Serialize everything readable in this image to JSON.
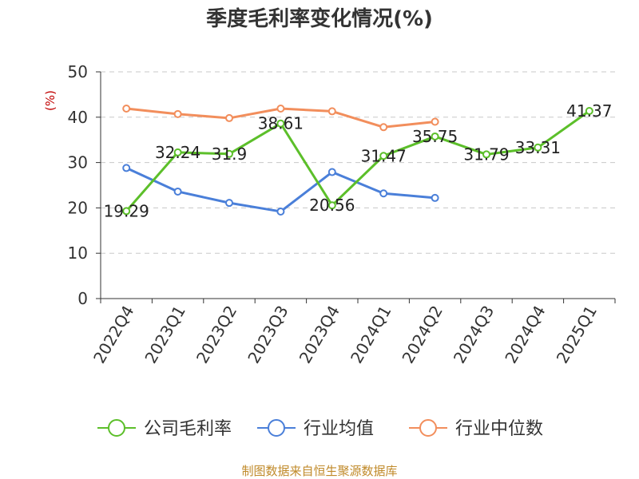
{
  "chart_data": {
    "type": "line",
    "title": "季度毛利率变化情况(%)",
    "unit_label": "(%)",
    "categories": [
      "2022Q4",
      "2023Q1",
      "2023Q2",
      "2023Q3",
      "2023Q4",
      "2024Q1",
      "2024Q2",
      "2024Q3",
      "2024Q4",
      "2025Q1"
    ],
    "ylim": [
      0,
      50
    ],
    "yticks": [
      0,
      10,
      20,
      30,
      40,
      50
    ],
    "grid": true,
    "legend_position": "bottom",
    "series": [
      {
        "name": "公司毛利率",
        "color": "#5cbf2a",
        "values": [
          19.29,
          32.24,
          31.9,
          38.61,
          20.56,
          31.47,
          35.75,
          31.79,
          33.31,
          41.37
        ],
        "show_labels": true
      },
      {
        "name": "行业均值",
        "color": "#4a7fd9",
        "values": [
          28.8,
          23.6,
          21.1,
          19.2,
          27.9,
          23.2,
          22.2,
          null,
          null,
          null
        ],
        "show_labels": false
      },
      {
        "name": "行业中位数",
        "color": "#f28e5c",
        "values": [
          41.9,
          40.7,
          39.8,
          41.9,
          41.3,
          37.8,
          39.0,
          null,
          null,
          null
        ],
        "show_labels": false
      }
    ]
  },
  "source_text": "制图数据来自恒生聚源数据库"
}
